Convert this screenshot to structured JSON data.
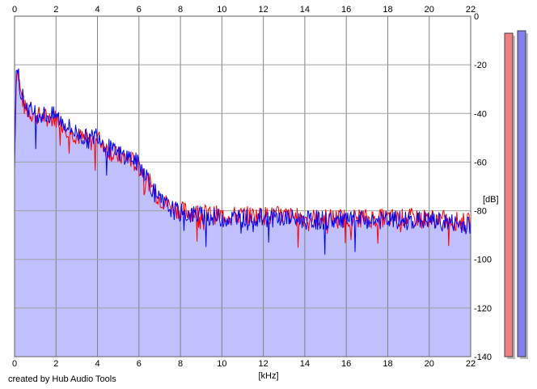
{
  "chart_data": {
    "type": "area",
    "x_unit_label": "[kHz]",
    "y_unit_label": "[dB]",
    "xlim": [
      0,
      22
    ],
    "ylim": [
      -140,
      0
    ],
    "x_ticks": [
      "0",
      "2",
      "4",
      "6",
      "8",
      "10",
      "12",
      "14",
      "16",
      "18",
      "20",
      "22"
    ],
    "y_ticks": [
      "0",
      "-20",
      "-40",
      "-60",
      "-80",
      "-100",
      "-120",
      "-140"
    ],
    "grid": true,
    "series": [
      {
        "color": "#ff0000",
        "x": [
          0,
          0.1,
          0.2,
          0.3,
          0.5,
          0.8,
          1.2,
          1.6,
          2.0,
          2.4,
          2.8,
          3.2,
          3.6,
          4.0,
          4.4,
          4.8,
          5.2,
          5.6,
          6.0,
          6.3,
          6.6,
          7.0,
          7.5,
          8.0,
          9.0,
          10.0,
          11.0,
          12.0,
          13.0,
          14.0,
          15.0,
          16.0,
          17.0,
          18.0,
          19.0,
          20.0,
          21.0,
          22.0
        ],
        "y": [
          -58,
          -20,
          -25,
          -32,
          -38,
          -40,
          -41,
          -42,
          -42,
          -45,
          -48,
          -50,
          -52,
          -50,
          -54,
          -57,
          -58,
          -59,
          -62,
          -65,
          -70,
          -75,
          -78,
          -80,
          -81,
          -82,
          -82,
          -82,
          -82,
          -83,
          -83,
          -83,
          -83,
          -83,
          -83,
          -83,
          -84,
          -85
        ]
      },
      {
        "color": "#0000ff",
        "x": [
          0,
          0.1,
          0.2,
          0.3,
          0.5,
          0.8,
          1.2,
          1.6,
          2.0,
          2.4,
          2.8,
          3.2,
          3.6,
          4.0,
          4.4,
          4.8,
          5.2,
          5.6,
          6.0,
          6.3,
          6.6,
          7.0,
          7.5,
          8.0,
          9.0,
          10.0,
          11.0,
          12.0,
          13.0,
          14.0,
          15.0,
          16.0,
          17.0,
          18.0,
          19.0,
          20.0,
          21.0,
          22.0
        ],
        "y": [
          -60,
          -17,
          -24,
          -31,
          -36,
          -39,
          -40,
          -41,
          -41,
          -44,
          -47,
          -49,
          -51,
          -48,
          -53,
          -56,
          -57,
          -58,
          -61,
          -64,
          -70,
          -76,
          -79,
          -81,
          -82,
          -83,
          -83,
          -83,
          -83,
          -84,
          -84,
          -84,
          -84,
          -84,
          -84,
          -84,
          -85,
          -86
        ]
      }
    ],
    "area_fill": "#c0c0ff",
    "level_bars": [
      {
        "color": "#f08080",
        "level_db": -7
      },
      {
        "color": "#8080ee",
        "level_db": -6
      }
    ]
  },
  "footer": {
    "credit": "created by Hub Audio Tools"
  }
}
